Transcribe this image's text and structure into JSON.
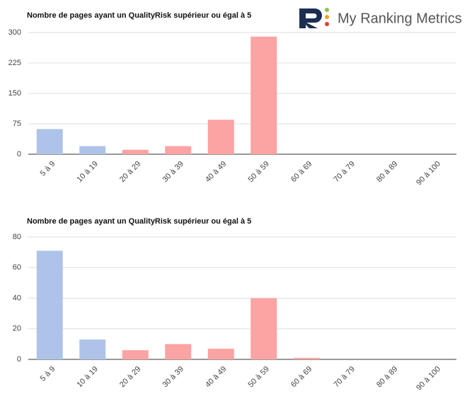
{
  "logo": "My Ranking Metrics",
  "chart_data": [
    {
      "type": "bar",
      "title": "Nombre de pages ayant un QualityRisk supérieur ou égal à 5",
      "categories": [
        "5 à 9",
        "10 à 19",
        "20 à 29",
        "30 à 39",
        "40 à 49",
        "50 à 59",
        "60 à 69",
        "70 à 79",
        "80 à 89",
        "90 à 100"
      ],
      "values": [
        62,
        20,
        11,
        20,
        85,
        290,
        0,
        0,
        0,
        0
      ],
      "colors": [
        "#aec3e8",
        "#aec3e8",
        "#fca3a3",
        "#fca3a3",
        "#fca3a3",
        "#fca3a3",
        "#fca3a3",
        "#fca3a3",
        "#fca3a3",
        "#fca3a3"
      ],
      "ylim": [
        0,
        300
      ],
      "yticks": [
        0,
        75,
        150,
        225,
        300
      ],
      "grid": true
    },
    {
      "type": "bar",
      "title": "Nombre de pages ayant un QualityRisk supérieur ou égal à 5",
      "categories": [
        "5 à 9",
        "10 à 19",
        "20 à 29",
        "30 à 39",
        "40 à 49",
        "50 à 59",
        "60 à 69",
        "70 à 79",
        "80 à 89",
        "90 à 100"
      ],
      "values": [
        71,
        13,
        6,
        10,
        7,
        40,
        1,
        0,
        0,
        0
      ],
      "colors": [
        "#aec3e8",
        "#aec3e8",
        "#fca3a3",
        "#fca3a3",
        "#fca3a3",
        "#fca3a3",
        "#fca3a3",
        "#fca3a3",
        "#fca3a3",
        "#fca3a3"
      ],
      "ylim": [
        0,
        80
      ],
      "yticks": [
        0,
        20,
        40,
        60,
        80
      ],
      "grid": true
    }
  ]
}
